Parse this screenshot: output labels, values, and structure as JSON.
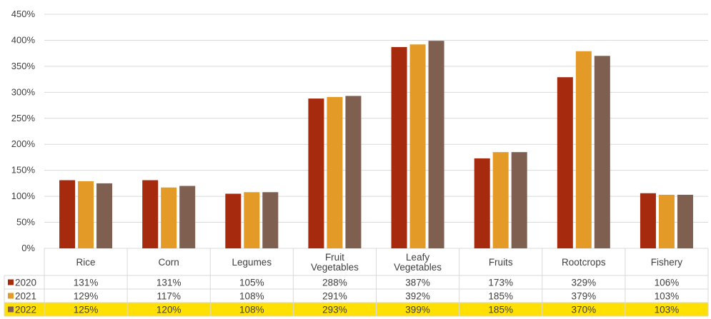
{
  "chart_data": {
    "type": "bar",
    "title": "",
    "xlabel": "",
    "ylabel": "",
    "ylim": [
      0,
      450
    ],
    "y_tick_step": 50,
    "y_tick_format": "percent",
    "grid": true,
    "legend_placement": "data-table-left",
    "data_table": true,
    "categories": [
      [
        "Rice"
      ],
      [
        "Corn"
      ],
      [
        "Legumes"
      ],
      [
        "Fruit",
        "Vegetables"
      ],
      [
        "Leafy",
        "Vegetables"
      ],
      [
        "Fruits"
      ],
      [
        "Rootcrops"
      ],
      [
        "Fishery"
      ]
    ],
    "series": [
      {
        "name": "2020",
        "color": "#A52A0E",
        "values": [
          131,
          131,
          105,
          288,
          387,
          173,
          329,
          106
        ]
      },
      {
        "name": "2021",
        "color": "#E39A26",
        "values": [
          129,
          117,
          108,
          291,
          392,
          185,
          379,
          103
        ]
      },
      {
        "name": "2022",
        "color": "#7F5F4F",
        "values": [
          125,
          120,
          108,
          293,
          399,
          185,
          370,
          103
        ]
      }
    ],
    "highlight_row": {
      "series": "2022",
      "color": "#FFE000"
    }
  }
}
